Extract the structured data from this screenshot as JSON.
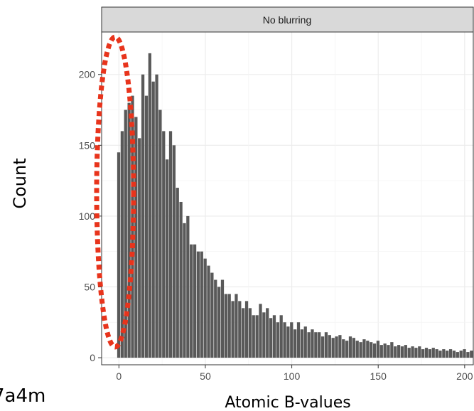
{
  "chart_data": {
    "type": "histogram",
    "facet_label": "No blurring",
    "xlabel": "Atomic B-values",
    "ylabel": "Count",
    "xlim": [
      -10,
      205
    ],
    "ylim": [
      -5,
      230
    ],
    "x_ticks": [
      0,
      50,
      100,
      150,
      200
    ],
    "y_ticks": [
      0,
      50,
      100,
      150,
      200
    ],
    "grid": true,
    "bar_color": "#595959",
    "bin_width": 2,
    "bin_start": -1,
    "values": [
      145,
      160,
      175,
      180,
      185,
      170,
      155,
      200,
      185,
      215,
      195,
      200,
      175,
      160,
      140,
      160,
      150,
      120,
      110,
      95,
      100,
      80,
      80,
      75,
      75,
      70,
      65,
      60,
      55,
      50,
      55,
      45,
      45,
      40,
      45,
      40,
      35,
      40,
      35,
      30,
      30,
      38,
      32,
      35,
      28,
      30,
      25,
      30,
      25,
      22,
      25,
      20,
      25,
      20,
      22,
      18,
      20,
      18,
      18,
      15,
      18,
      16,
      14,
      15,
      16,
      13,
      12,
      15,
      14,
      12,
      11,
      13,
      12,
      11,
      10,
      12,
      9,
      10,
      9,
      11,
      8,
      9,
      8,
      9,
      7,
      8,
      7,
      8,
      6,
      7,
      6,
      7,
      6,
      5,
      6,
      5,
      6,
      5,
      4,
      5,
      6,
      4,
      5,
      4,
      3
    ],
    "annotation": {
      "shape": "ellipse",
      "color": "#e8341c",
      "style": "dotted"
    },
    "corner_text": "7a4m"
  }
}
